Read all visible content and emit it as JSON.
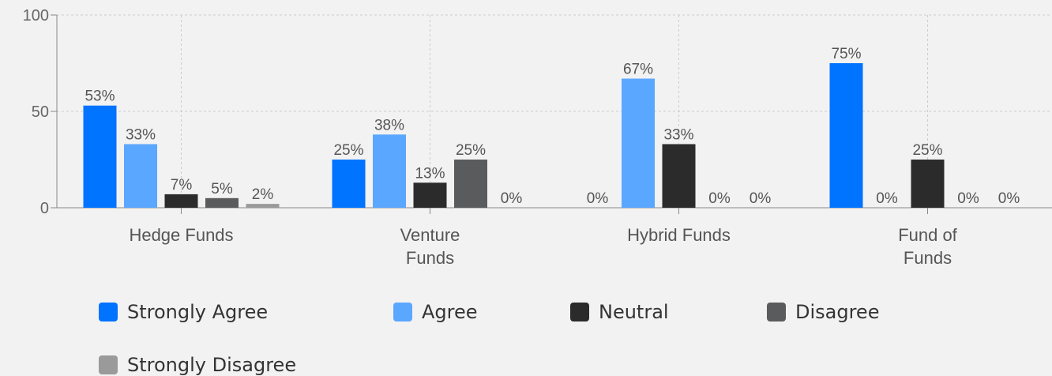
{
  "chart_data": {
    "type": "bar",
    "categories": [
      "Hedge Funds",
      "Venture\nFunds",
      "Hybrid Funds",
      "Fund of\nFunds"
    ],
    "series": [
      {
        "name": "Strongly Agree",
        "color": "#0073ff",
        "values": [
          53,
          25,
          0,
          75
        ],
        "value_labels": [
          "53%",
          "25%",
          "0%",
          "75%"
        ]
      },
      {
        "name": "Agree",
        "color": "#5aa7ff",
        "values": [
          33,
          38,
          67,
          0
        ],
        "value_labels": [
          "33%",
          "38%",
          "67%",
          "0%"
        ]
      },
      {
        "name": "Neutral",
        "color": "#2b2b2b",
        "values": [
          7,
          13,
          33,
          25
        ],
        "value_labels": [
          "7%",
          "13%",
          "33%",
          "25%"
        ]
      },
      {
        "name": "Disagree",
        "color": "#5a5b5d",
        "values": [
          5,
          25,
          0,
          0
        ],
        "value_labels": [
          "5%",
          "25%",
          "0%",
          "0%"
        ]
      },
      {
        "name": "Strongly Disagree",
        "color": "#9a9a9a",
        "values": [
          2,
          0,
          0,
          0
        ],
        "value_labels": [
          "2%",
          "0%",
          "0%",
          "0%"
        ]
      }
    ],
    "ylim": [
      0,
      100
    ],
    "yticks": [
      0,
      50,
      100
    ],
    "grid": true
  }
}
